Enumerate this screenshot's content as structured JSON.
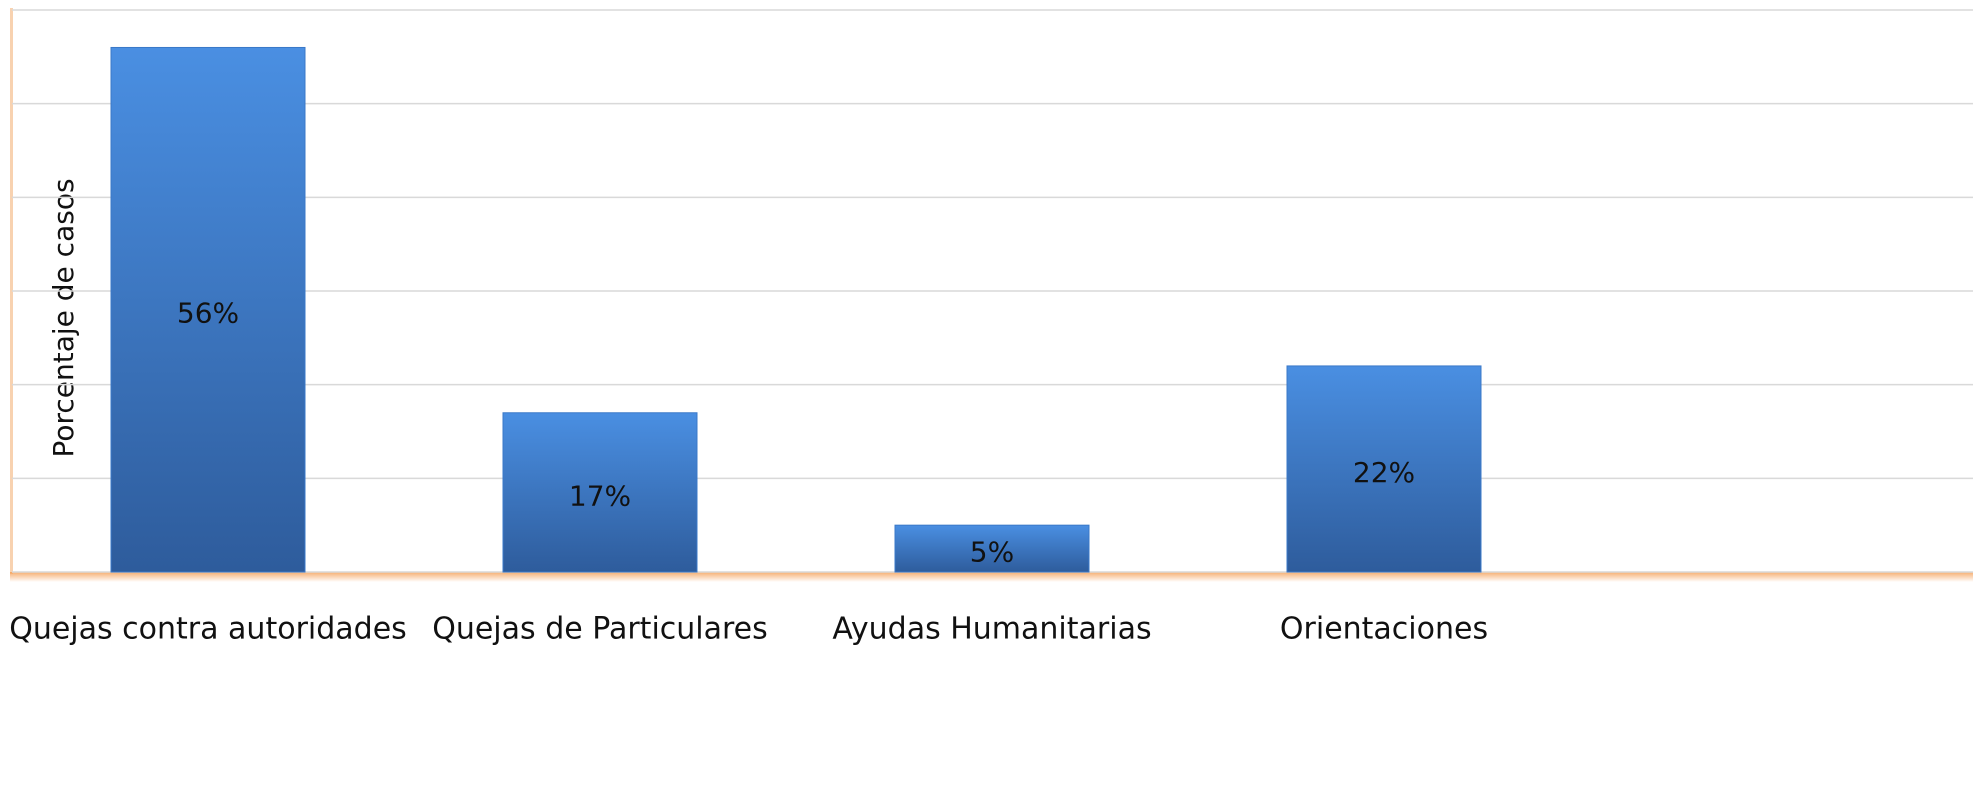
{
  "chart_data": {
    "type": "bar",
    "y_label": "Porcentaje de casos",
    "categories": [
      "Quejas contra autoridades",
      "Quejas de Particulares",
      "Ayudas Humanitarias",
      "Orientaciones"
    ],
    "values": [
      56,
      17,
      5,
      22
    ],
    "value_labels": [
      "56%",
      "17%",
      "5%",
      "22%"
    ],
    "color": "#3a78c8",
    "ylim": [
      0,
      60
    ],
    "yticks": [
      0,
      10,
      20,
      30,
      40,
      50,
      60
    ],
    "grid": true
  }
}
